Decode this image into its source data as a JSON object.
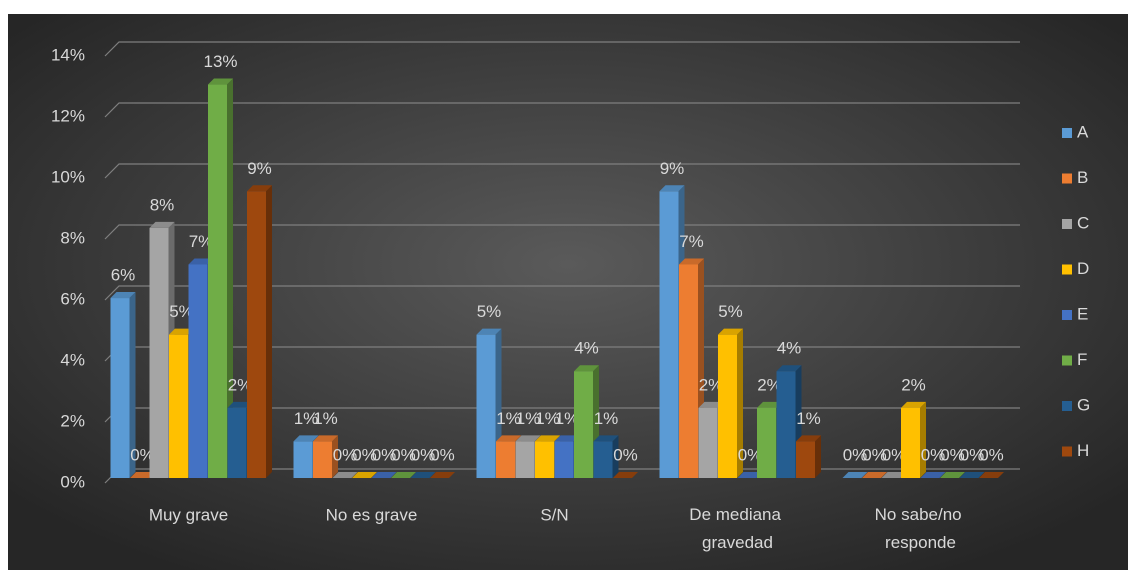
{
  "chart_data": {
    "type": "bar",
    "categories": [
      "Muy grave",
      "No es grave",
      "S/N",
      "De mediana gravedad",
      "No sabe/no responde"
    ],
    "series": [
      {
        "name": "A",
        "color": "#5b9bd5",
        "values": [
          5.9,
          1.2,
          4.7,
          9.4,
          0
        ],
        "value_labels": [
          "6%",
          "1%",
          "5%",
          "9%",
          "0%"
        ]
      },
      {
        "name": "B",
        "color": "#ed7d31",
        "values": [
          0,
          1.2,
          1.2,
          7.0,
          0
        ],
        "value_labels": [
          "0%",
          "1%",
          "1%",
          "7%",
          "0%"
        ]
      },
      {
        "name": "C",
        "color": "#a5a5a5",
        "values": [
          8.2,
          0,
          1.2,
          2.3,
          0
        ],
        "value_labels": [
          "8%",
          "0%",
          "1%",
          "2%",
          "0%"
        ]
      },
      {
        "name": "D",
        "color": "#ffc000",
        "values": [
          4.7,
          0,
          1.2,
          4.7,
          2.3
        ],
        "value_labels": [
          "5%",
          "0%",
          "1%",
          "5%",
          "2%"
        ]
      },
      {
        "name": "E",
        "color": "#4472c4",
        "values": [
          7.0,
          0,
          1.2,
          0,
          0
        ],
        "value_labels": [
          "7%",
          "0%",
          "1%",
          "0%",
          "0%"
        ]
      },
      {
        "name": "F",
        "color": "#70ad47",
        "values": [
          12.9,
          0,
          3.5,
          2.3,
          0
        ],
        "value_labels": [
          "13%",
          "0%",
          "4%",
          "2%",
          "0%"
        ]
      },
      {
        "name": "G",
        "color": "#255e91",
        "values": [
          2.3,
          0,
          1.2,
          3.5,
          0
        ],
        "value_labels": [
          "2%",
          "0%",
          "1%",
          "4%",
          "0%"
        ]
      },
      {
        "name": "H",
        "color": "#9e480e",
        "values": [
          9.4,
          0,
          0,
          1.2,
          0
        ],
        "value_labels": [
          "9%",
          "0%",
          "0%",
          "1%",
          "0%"
        ]
      }
    ],
    "ylim": [
      0,
      14
    ],
    "yticks": [
      {
        "value": 0,
        "label": "0%"
      },
      {
        "value": 2,
        "label": "2%"
      },
      {
        "value": 4,
        "label": "4%"
      },
      {
        "value": 6,
        "label": "6%"
      },
      {
        "value": 8,
        "label": "8%"
      },
      {
        "value": 10,
        "label": "10%"
      },
      {
        "value": 12,
        "label": "12%"
      },
      {
        "value": 14,
        "label": "14%"
      }
    ],
    "grid": true,
    "legend": "right"
  }
}
